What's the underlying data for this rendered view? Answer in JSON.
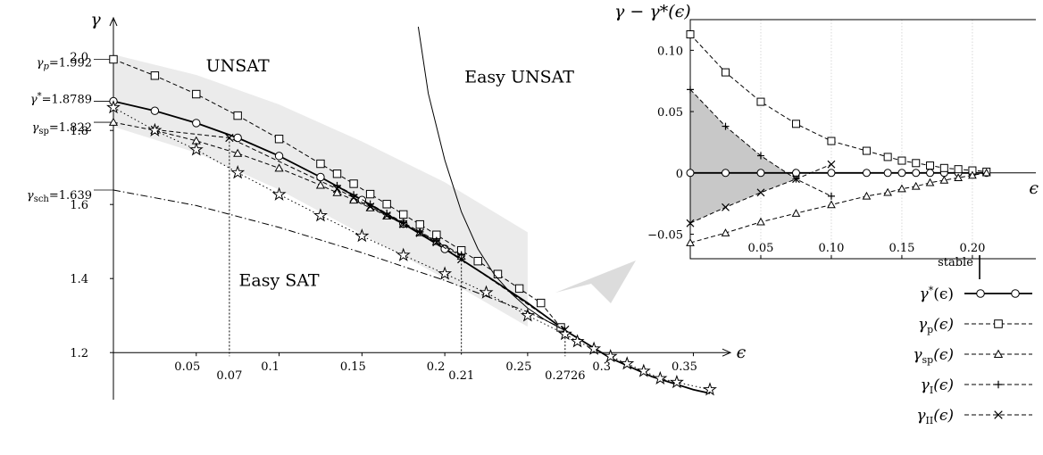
{
  "chart_data": [
    {
      "type": "line",
      "x_axis_label": "ϵ",
      "y_axis_label": "γ",
      "xlim": [
        0,
        0.36
      ],
      "ylim": [
        1.08,
        2.08
      ],
      "x_ticks": [
        "0.05",
        "0.1",
        "0.15",
        "0.2",
        "0.25",
        "0.3",
        "0.35"
      ],
      "x_ticks_values": [
        0.05,
        0.1,
        0.15,
        0.2,
        0.25,
        0.3,
        0.35
      ],
      "y_ticks": [
        "1.2",
        "1.4",
        "1.6",
        "1.8",
        "2.0"
      ],
      "y_ticks_values": [
        1.2,
        1.4,
        1.6,
        1.8,
        2.0
      ],
      "marked_x": [
        {
          "label": "0.07",
          "x": 0.07,
          "y": 1.78
        },
        {
          "label": "0.21",
          "x": 0.21,
          "y": 1.45
        },
        {
          "label": "0.2726",
          "x": 0.2726,
          "y": 1.26
        }
      ],
      "marked_y": [
        {
          "label": "γp=1.992",
          "y": 1.992
        },
        {
          "label": "γ*=1.8789",
          "y": 1.8789
        },
        {
          "label": "γsp=1.822",
          "y": 1.822
        },
        {
          "label": "γsch=1.639",
          "y": 1.639
        }
      ],
      "regions": [
        {
          "label": "UNSAT",
          "x": 0.075,
          "y": 1.96
        },
        {
          "label": "Easy UNSAT",
          "x": 0.245,
          "y": 1.93
        },
        {
          "label": "Easy SAT",
          "x": 0.1,
          "y": 1.38
        }
      ],
      "shaded_band": {
        "upper": {
          "x": [
            0,
            0.05,
            0.1,
            0.15,
            0.2,
            0.25
          ],
          "y": [
            2.005,
            1.95,
            1.87,
            1.77,
            1.66,
            1.525
          ]
        },
        "lower": {
          "x": [
            0,
            0.05,
            0.1,
            0.15,
            0.2,
            0.25
          ],
          "y": [
            1.81,
            1.74,
            1.64,
            1.52,
            1.4,
            1.27
          ]
        }
      },
      "series": [
        {
          "key": "star",
          "style": "solid",
          "width": 1.8,
          "marker": "circle",
          "x": [
            0,
            0.025,
            0.05,
            0.075,
            0.1,
            0.125,
            0.15,
            0.175,
            0.2,
            0.225,
            0.25,
            0.2726,
            0.3,
            0.325,
            0.35,
            0.36
          ],
          "y": [
            1.8789,
            1.853,
            1.82,
            1.78,
            1.731,
            1.674,
            1.612,
            1.548,
            1.48,
            1.408,
            1.334,
            1.26,
            1.185,
            1.135,
            1.1,
            1.09
          ],
          "marker_x": [
            0,
            0.025,
            0.05,
            0.075,
            0.1,
            0.125,
            0.15,
            0.175,
            0.2
          ],
          "marker_y": [
            1.8789,
            1.853,
            1.82,
            1.78,
            1.731,
            1.674,
            1.612,
            1.548,
            1.48
          ]
        },
        {
          "key": "p",
          "style": "dashed",
          "marker": "square",
          "x": [
            0,
            0.025,
            0.05,
            0.075,
            0.1,
            0.125,
            0.135,
            0.145,
            0.155,
            0.165,
            0.175,
            0.185,
            0.195,
            0.21,
            0.22,
            0.232,
            0.245,
            0.258,
            0.27
          ],
          "y": [
            1.992,
            1.948,
            1.898,
            1.84,
            1.777,
            1.71,
            1.683,
            1.656,
            1.628,
            1.601,
            1.573,
            1.546,
            1.518,
            1.476,
            1.447,
            1.412,
            1.373,
            1.334,
            1.268
          ]
        },
        {
          "key": "sp",
          "style": "dashed",
          "marker": "triangle",
          "x": [
            0,
            0.025,
            0.05,
            0.075,
            0.1,
            0.125,
            0.135,
            0.145,
            0.155,
            0.165,
            0.175,
            0.185,
            0.195,
            0.21
          ],
          "y": [
            1.822,
            1.8,
            1.772,
            1.738,
            1.698,
            1.652,
            1.632,
            1.612,
            1.591,
            1.569,
            1.547,
            1.524,
            1.5,
            1.46
          ]
        },
        {
          "key": "I",
          "style": "dashed",
          "marker": "plus",
          "x": [
            0.135,
            0.145,
            0.155,
            0.165,
            0.175,
            0.185,
            0.195,
            0.21
          ],
          "y": [
            1.651,
            1.626,
            1.601,
            1.576,
            1.551,
            1.526,
            1.502,
            1.464
          ]
        },
        {
          "key": "II",
          "style": "dashed",
          "marker": "cross",
          "x": [
            0.025,
            0.07,
            0.135,
            0.145,
            0.155,
            0.165,
            0.175,
            0.185,
            0.195,
            0.21,
            0.2726
          ],
          "y": [
            1.802,
            1.78,
            1.642,
            1.618,
            1.594,
            1.57,
            1.547,
            1.523,
            1.498,
            1.452,
            1.262
          ]
        },
        {
          "key": "dotted",
          "style": "dotted",
          "marker": "star",
          "x": [
            0,
            0.025,
            0.05,
            0.075,
            0.1,
            0.125,
            0.15,
            0.175,
            0.2,
            0.225,
            0.25,
            0.2726,
            0.28,
            0.29,
            0.3,
            0.31,
            0.32,
            0.33,
            0.34,
            0.36
          ],
          "y": [
            1.862,
            1.8,
            1.748,
            1.686,
            1.627,
            1.57,
            1.515,
            1.463,
            1.413,
            1.362,
            1.3,
            1.25,
            1.23,
            1.21,
            1.19,
            1.17,
            1.15,
            1.13,
            1.12,
            1.1
          ],
          "marker_x": [
            0,
            0.025,
            0.05,
            0.075,
            0.1,
            0.125,
            0.15,
            0.175,
            0.2,
            0.225,
            0.25,
            0.2726,
            0.28,
            0.29,
            0.3,
            0.31,
            0.32,
            0.33,
            0.34,
            0.36
          ],
          "marker_y": [
            1.862,
            1.8,
            1.748,
            1.686,
            1.627,
            1.57,
            1.515,
            1.463,
            1.413,
            1.362,
            1.3,
            1.25,
            1.23,
            1.21,
            1.19,
            1.17,
            1.15,
            1.13,
            1.12,
            1.1
          ]
        },
        {
          "key": "sch",
          "style": "dashdot",
          "marker": "none",
          "x": [
            0,
            0.05,
            0.1,
            0.15,
            0.2,
            0.25,
            0.2726
          ],
          "y": [
            1.639,
            1.597,
            1.538,
            1.47,
            1.395,
            1.31,
            1.262
          ]
        },
        {
          "key": "easy-unsat",
          "style": "solid",
          "marker": "none",
          "x": [
            0.184,
            0.19,
            0.2,
            0.21,
            0.22,
            0.23,
            0.24,
            0.25,
            0.26,
            0.27,
            0.2726
          ],
          "y": [
            2.08,
            1.9,
            1.72,
            1.58,
            1.48,
            1.41,
            1.36,
            1.32,
            1.29,
            1.265,
            1.26
          ]
        }
      ]
    },
    {
      "type": "line",
      "y_axis_label": "γ − γ*(ϵ)",
      "x_axis_label": "ϵ",
      "xlim": [
        0,
        0.245
      ],
      "ylim": [
        -0.07,
        0.125
      ],
      "x_ticks": [
        "0.05",
        "0.10",
        "0.15",
        "0.20"
      ],
      "x_ticks_values": [
        0.05,
        0.1,
        0.15,
        0.2
      ],
      "y_ticks": [
        "0.10",
        "0.05",
        "0",
        "−0.05"
      ],
      "y_ticks_values": [
        0.1,
        0.05,
        0,
        -0.05
      ],
      "shaded_region": {
        "x": [
          0,
          0.025,
          0.05,
          0.075,
          0.075,
          0.05,
          0.025,
          0
        ],
        "y": [
          0.068,
          0.038,
          0.014,
          -0.005,
          -0.005,
          -0.016,
          -0.028,
          -0.041
        ]
      },
      "series": [
        {
          "key": "star",
          "marker": "circle",
          "style": "solid",
          "width": 1.8,
          "x": [
            0,
            0.025,
            0.05,
            0.075,
            0.1,
            0.125,
            0.14,
            0.15,
            0.16,
            0.17,
            0.18,
            0.19,
            0.2,
            0.21
          ],
          "y": [
            0,
            0,
            0,
            0,
            0,
            0,
            0,
            0,
            0,
            0,
            0,
            0,
            0,
            0
          ]
        },
        {
          "key": "p",
          "marker": "square",
          "style": "dashed",
          "x": [
            0,
            0.025,
            0.05,
            0.075,
            0.1,
            0.125,
            0.14,
            0.15,
            0.16,
            0.17,
            0.18,
            0.19,
            0.2,
            0.21
          ],
          "y": [
            0.113,
            0.082,
            0.058,
            0.04,
            0.026,
            0.018,
            0.013,
            0.01,
            0.008,
            0.006,
            0.004,
            0.003,
            0.002,
            0.001
          ]
        },
        {
          "key": "sp",
          "marker": "triangle",
          "style": "dashed",
          "x": [
            0,
            0.025,
            0.05,
            0.075,
            0.1,
            0.125,
            0.14,
            0.15,
            0.16,
            0.17,
            0.18,
            0.19,
            0.2,
            0.21
          ],
          "y": [
            -0.057,
            -0.049,
            -0.04,
            -0.033,
            -0.026,
            -0.019,
            -0.016,
            -0.013,
            -0.011,
            -0.008,
            -0.006,
            -0.004,
            -0.002,
            0
          ]
        },
        {
          "key": "I",
          "marker": "plus",
          "style": "dashed",
          "x": [
            0,
            0.025,
            0.05,
            0.075,
            0.1
          ],
          "y": [
            0.068,
            0.038,
            0.014,
            -0.005,
            -0.019
          ]
        },
        {
          "key": "II",
          "marker": "cross",
          "style": "dashed",
          "x": [
            0,
            0.025,
            0.05,
            0.075,
            0.1
          ],
          "y": [
            -0.041,
            -0.028,
            -0.016,
            -0.005,
            0.007
          ]
        }
      ]
    }
  ],
  "legend": {
    "title": "stable",
    "entries": [
      {
        "key": "star",
        "sym": "γ",
        "sup": "*",
        "sub": "",
        "arg": "(ϵ)"
      },
      {
        "key": "p",
        "sym": "γ",
        "sup": "",
        "sub": "p",
        "arg": "(ϵ)"
      },
      {
        "key": "sp",
        "sym": "γ",
        "sup": "",
        "sub": "sp",
        "arg": "(ϵ)"
      },
      {
        "key": "I",
        "sym": "γ",
        "sup": "",
        "sub": "I",
        "arg": "(ϵ)"
      },
      {
        "key": "II",
        "sym": "γ",
        "sup": "",
        "sub": "II",
        "arg": "(ϵ)"
      }
    ]
  },
  "colors": {
    "line": "#000000",
    "band": "#ebebeb",
    "inset_fill": "#c8c8c8",
    "arrow": "#dcdcdc",
    "grid": "#d8d8d8"
  }
}
